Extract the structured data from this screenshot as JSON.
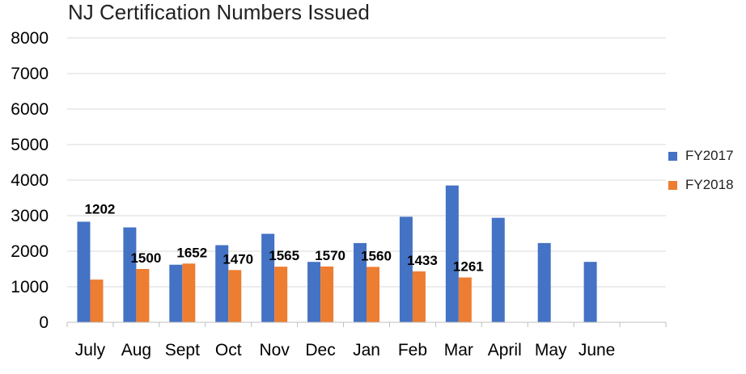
{
  "chart_data": {
    "type": "bar",
    "title": "NJ Certification Numbers Issued",
    "categories": [
      "July",
      "Aug",
      "Sept",
      "Oct",
      "Nov",
      "Dec",
      "Jan",
      "Feb",
      "Mar",
      "April",
      "May",
      "June"
    ],
    "series": [
      {
        "name": "FY2017",
        "color": "#4472C4",
        "values": [
          2830,
          2670,
          1620,
          2170,
          2490,
          1700,
          2230,
          2970,
          3850,
          2940,
          2230,
          1700
        ],
        "data_labels": false
      },
      {
        "name": "FY2018",
        "color": "#ED7D31",
        "values": [
          1202,
          1500,
          1652,
          1470,
          1565,
          1570,
          1560,
          1433,
          1261,
          null,
          null,
          null
        ],
        "data_labels": true
      }
    ],
    "ylim": [
      0,
      8000
    ],
    "yticks": [
      0,
      1000,
      2000,
      3000,
      4000,
      5000,
      6000,
      7000,
      8000
    ],
    "grid": true,
    "legend_position": "right"
  }
}
